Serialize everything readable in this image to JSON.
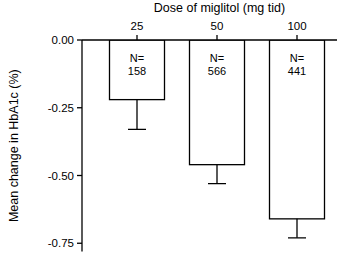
{
  "chart_data": {
    "type": "bar",
    "x_label": "Dose of miglitol (mg tid)",
    "y_label": "Mean change in HbA1c (%)",
    "categories": [
      "25",
      "50",
      "100"
    ],
    "values": [
      -0.22,
      -0.46,
      -0.66
    ],
    "errors": [
      0.11,
      0.07,
      0.07
    ],
    "annotations": [
      [
        "N=",
        "158"
      ],
      [
        "N=",
        "566"
      ],
      [
        "N=",
        "441"
      ]
    ],
    "color": "#ffffff",
    "ylim": [
      -0.78,
      0
    ],
    "yticks": [
      {
        "value": 0,
        "label": "0.00"
      },
      {
        "value": -0.25,
        "label": "-0.25"
      },
      {
        "value": -0.5,
        "label": "-0.50"
      },
      {
        "value": -0.75,
        "label": "-0.75"
      }
    ],
    "grid": false
  }
}
